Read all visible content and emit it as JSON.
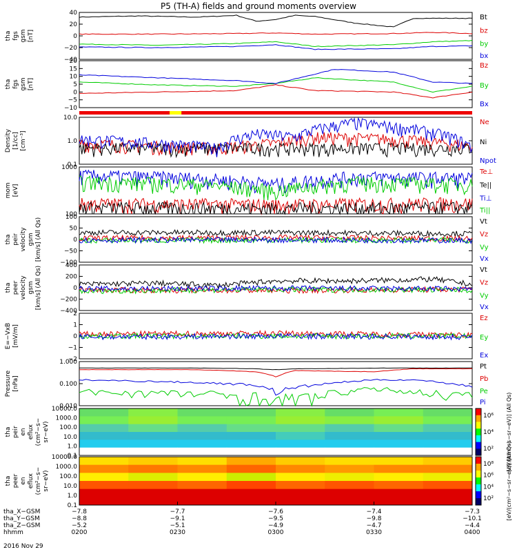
{
  "chart_data": {
    "type": "line",
    "title": "P5 (TH-A) fields and ground moments overview",
    "panels": [
      {
        "ylabel": [
          "tha",
          "fgs",
          "gsm",
          "[nT]"
        ],
        "yticks": [
          "40",
          "20",
          "0",
          "−20",
          "−40"
        ],
        "ylim": [
          -40,
          40
        ],
        "series": [
          {
            "name": "Bt",
            "color": "#000000",
            "x": [
              0,
              0.15,
              0.3,
              0.4,
              0.45,
              0.5,
              0.55,
              0.6,
              0.7,
              0.8,
              0.85,
              0.9,
              1
            ],
            "values": [
              32,
              34,
              32,
              35,
              25,
              28,
              35,
              33,
              22,
              15,
              30,
              30,
              30
            ]
          },
          {
            "name": "bz",
            "color": "#dd0000",
            "x": [
              0,
              0.2,
              0.4,
              0.5,
              0.6,
              0.8,
              0.9,
              1
            ],
            "values": [
              3,
              3,
              4,
              5,
              3,
              4,
              6,
              4
            ]
          },
          {
            "name": "by",
            "color": "#00cc00",
            "x": [
              0,
              0.2,
              0.4,
              0.5,
              0.6,
              0.8,
              0.9,
              1
            ],
            "values": [
              -14,
              -16,
              -13,
              -10,
              -18,
              -15,
              -10,
              -8
            ]
          },
          {
            "name": "bx",
            "color": "#0000dd",
            "x": [
              0,
              0.2,
              0.4,
              0.5,
              0.6,
              0.8,
              0.9,
              1
            ],
            "values": [
              -19,
              -20,
              -18,
              -15,
              -23,
              -22,
              -18,
              -17
            ]
          }
        ]
      },
      {
        "ylabel": [
          "tha",
          "fgs",
          "gsm",
          "[nT]"
        ],
        "yticks": [
          "20",
          "15",
          "10",
          "5",
          "0",
          "−5",
          "−10"
        ],
        "ylim": [
          -13,
          20
        ],
        "series": [
          {
            "name": "Bz",
            "color": "#dd0000",
            "x": [
              0,
              0.2,
              0.4,
              0.5,
              0.6,
              0.8,
              0.9,
              1
            ],
            "values": [
              -3,
              -2,
              -1,
              3,
              -1,
              -2,
              -6,
              -2
            ]
          },
          {
            "name": "By",
            "color": "#00cc00",
            "x": [
              0,
              0.2,
              0.4,
              0.5,
              0.6,
              0.8,
              0.9,
              1
            ],
            "values": [
              5,
              3,
              2,
              4,
              8,
              5,
              -2,
              2
            ]
          },
          {
            "name": "Bx",
            "color": "#0000dd",
            "x": [
              0,
              0.2,
              0.4,
              0.5,
              0.65,
              0.8,
              0.9,
              1
            ],
            "values": [
              10,
              8,
              6,
              4,
              14,
              12,
              5,
              4
            ]
          }
        ]
      },
      {
        "ylabel": [
          "Density",
          "[1/cc]",
          "[cm⁻³]"
        ],
        "yticks": [
          "10.0",
          "1.0",
          "0.1"
        ],
        "scale": "log",
        "ylim": [
          0.1,
          10
        ],
        "series": [
          {
            "name": "Ne",
            "color": "#dd0000",
            "x": [
              0,
              0.2,
              0.35,
              0.5,
              0.6,
              0.8,
              1
            ],
            "values": [
              0.8,
              0.6,
              0.5,
              0.8,
              1.5,
              1.2,
              0.6
            ]
          },
          {
            "name": "Ni",
            "color": "#000000",
            "x": [
              0,
              0.5,
              1
            ],
            "values": [
              0.5,
              0.5,
              0.5
            ]
          },
          {
            "name": "Npot",
            "color": "#0000dd",
            "x": [
              0,
              0.2,
              0.35,
              0.45,
              0.55,
              0.7,
              0.8,
              1
            ],
            "values": [
              1.2,
              0.8,
              0.5,
              2,
              1.5,
              6,
              4,
              0.5
            ]
          }
        ]
      },
      {
        "ylabel": [
          "mom",
          "[eV]"
        ],
        "yticks": [
          "1000",
          "100"
        ],
        "scale": "log",
        "ylim": [
          100,
          5000
        ],
        "series": [
          {
            "name": "Te⊥",
            "color": "#dd0000",
            "x": [
              0,
              0.5,
              1
            ],
            "values": [
              240,
              220,
              250
            ]
          },
          {
            "name": "Te||",
            "color": "#000000",
            "x": [
              0,
              0.5,
              1
            ],
            "values": [
              170,
              160,
              170
            ]
          },
          {
            "name": "Ti⊥",
            "color": "#0000dd",
            "x": [
              0,
              0.3,
              0.5,
              0.7,
              1
            ],
            "values": [
              2500,
              2000,
              1200,
              2200,
              2000
            ]
          },
          {
            "name": "Ti||",
            "color": "#00cc00",
            "x": [
              0,
              0.3,
              0.5,
              0.7,
              1
            ],
            "values": [
              1500,
              1200,
              700,
              1400,
              1200
            ]
          }
        ]
      },
      {
        "ylabel": [
          "tha",
          "peir",
          "velocity",
          "gsm",
          "[km/s] (All Qs)"
        ],
        "yticks": [
          "100",
          "50",
          "0",
          "−50",
          "−100"
        ],
        "ylim": [
          -100,
          100
        ],
        "series": [
          {
            "name": "Vt",
            "color": "#000000",
            "x": [
              0,
              0.5,
              1
            ],
            "values": [
              30,
              30,
              25
            ]
          },
          {
            "name": "Vz",
            "color": "#dd0000",
            "x": [
              0,
              0.5,
              1
            ],
            "values": [
              5,
              8,
              3
            ]
          },
          {
            "name": "Vy",
            "color": "#00cc00",
            "x": [
              0,
              0.5,
              1
            ],
            "values": [
              -5,
              -3,
              -4
            ]
          },
          {
            "name": "Vx",
            "color": "#0000dd",
            "x": [
              0,
              0.5,
              1
            ],
            "values": [
              -3,
              -2,
              -5
            ]
          }
        ]
      },
      {
        "ylabel": [
          "tha",
          "peer",
          "velocity",
          "gsm",
          "[km/s] (All Qs)"
        ],
        "yticks": [
          "400",
          "200",
          "0",
          "−200",
          "−400"
        ],
        "ylim": [
          -400,
          400
        ],
        "series": [
          {
            "name": "Vt",
            "color": "#000000",
            "x": [
              0,
              0.2,
              0.35,
              0.5,
              0.7,
              0.9,
              1
            ],
            "values": [
              60,
              80,
              40,
              120,
              120,
              150,
              60
            ]
          },
          {
            "name": "Vz",
            "color": "#dd0000",
            "x": [
              0,
              0.5,
              1
            ],
            "values": [
              -40,
              -50,
              -30
            ]
          },
          {
            "name": "Vy",
            "color": "#00cc00",
            "x": [
              0,
              0.5,
              1
            ],
            "values": [
              -60,
              -30,
              -40
            ]
          },
          {
            "name": "Vx",
            "color": "#0000dd",
            "x": [
              0,
              0.5,
              1
            ],
            "values": [
              -20,
              -10,
              -20
            ]
          }
        ]
      },
      {
        "ylabel": [
          "E=−VxB",
          "[mV/m]"
        ],
        "yticks": [
          "2",
          "1",
          "0",
          "−1",
          "−2"
        ],
        "ylim": [
          -2.5,
          2.5
        ],
        "series": [
          {
            "name": "Ez",
            "color": "#dd0000",
            "x": [
              0,
              0.5,
              1
            ],
            "values": [
              0.2,
              0.3,
              0.1
            ]
          },
          {
            "name": "Ey",
            "color": "#00cc00",
            "x": [
              0,
              0.5,
              1
            ],
            "values": [
              0,
              0,
              0
            ]
          },
          {
            "name": "Ex",
            "color": "#0000dd",
            "x": [
              0,
              0.5,
              1
            ],
            "values": [
              -0.1,
              0,
              -0.1
            ]
          }
        ]
      },
      {
        "ylabel": [
          "Pressure",
          "[nPa]"
        ],
        "yticks": [
          "1.000",
          "0.100",
          "0.010"
        ],
        "scale": "log",
        "ylim": [
          0.003,
          1.2
        ],
        "series": [
          {
            "name": "Pt",
            "color": "#000000",
            "x": [
              0,
              0.3,
              0.45,
              0.5,
              0.55,
              0.8,
              1
            ],
            "values": [
              0.5,
              0.5,
              0.45,
              0.4,
              0.45,
              0.5,
              0.5
            ]
          },
          {
            "name": "Pb",
            "color": "#dd0000",
            "x": [
              0,
              0.3,
              0.45,
              0.5,
              0.55,
              0.75,
              0.85,
              1
            ],
            "values": [
              0.4,
              0.4,
              0.3,
              0.15,
              0.35,
              0.3,
              0.45,
              0.45
            ]
          },
          {
            "name": "Pe",
            "color": "#00cc00",
            "x": [
              0,
              0.3,
              0.45,
              0.5,
              0.6,
              0.75,
              0.85,
              1
            ],
            "values": [
              0.02,
              0.015,
              0.01,
              0.005,
              0.01,
              0.03,
              0.02,
              0.01
            ]
          },
          {
            "name": "Pi",
            "color": "#0000dd",
            "x": [
              0,
              0.3,
              0.45,
              0.5,
              0.6,
              0.75,
              0.85,
              1
            ],
            "values": [
              0.1,
              0.07,
              0.05,
              0.02,
              0.05,
              0.1,
              0.1,
              0.04
            ]
          }
        ]
      },
      {
        "type": "heatmap",
        "ylabel": [
          "tha",
          "peir",
          "en",
          "eflux",
          "(cm²−s−",
          "sr−eV)"
        ],
        "yticks": [
          "10000.0",
          "1000.0",
          "100.0",
          "10.0",
          "1.0",
          "0.1"
        ],
        "colorbar": {
          "label": "[eV/(cm²−s−sr−eV)] (All Qs)",
          "ticks": [
            "10⁶",
            "10⁴",
            "10²"
          ]
        },
        "rows": [
          [
            "#66dd66",
            "#88ee44",
            "#66dd66",
            "#66dd66",
            "#88ee44",
            "#66dd66",
            "#77ee55",
            "#66dd66"
          ],
          [
            "#77ee55",
            "#99ee33",
            "#77ee55",
            "#77ee55",
            "#99ee33",
            "#88ee44",
            "#99ee33",
            "#77ee55"
          ],
          [
            "#55ccaa",
            "#66dd88",
            "#55ccaa",
            "#66dd88",
            "#66dd88",
            "#55ccaa",
            "#66dd88",
            "#55ccaa"
          ],
          [
            "#33bbcc",
            "#33bbcc",
            "#33bbcc",
            "#33bbcc",
            "#44ccbb",
            "#33bbcc",
            "#33bbcc",
            "#33bbcc"
          ],
          [
            "#22ccee",
            "#22ccee",
            "#22ccee",
            "#22ccee",
            "#22ccee",
            "#22ccee",
            "#22ccee",
            "#22ccee"
          ],
          [
            "#ffffff",
            "#ffffff",
            "#ffffff",
            "#ffffff",
            "#ffffff",
            "#ffffff",
            "#ffffff",
            "#ffffff"
          ]
        ]
      },
      {
        "type": "heatmap",
        "ylabel": [
          "tha",
          "peer",
          "en",
          "eflux",
          "(cm²−s−",
          "sr−eV)"
        ],
        "yticks": [
          "10000.0",
          "1000.0",
          "100.0",
          "10.0",
          "1.0",
          "0.1"
        ],
        "colorbar": {
          "label": "[eV/(cm²−s−sr−eV)] (All Qs)",
          "ticks": [
            "10⁸",
            "10⁶",
            "10⁴",
            "10²"
          ]
        },
        "rows": [
          [
            "#ffdd00",
            "#ffcc00",
            "#ffdd00",
            "#ffaa00",
            "#ffcc00",
            "#ffdd00",
            "#ffdd00",
            "#ffcc00"
          ],
          [
            "#ff8800",
            "#ff7700",
            "#ff8800",
            "#ff6600",
            "#ff8800",
            "#ff9900",
            "#ff8800",
            "#ff8800"
          ],
          [
            "#ffee00",
            "#ddee00",
            "#ffee00",
            "#ccee00",
            "#ffee00",
            "#eeee00",
            "#ffee00",
            "#eeee00"
          ],
          [
            "#ff5500",
            "#ff5500",
            "#ff6600",
            "#ff4400",
            "#ff6600",
            "#ff5500",
            "#ff6600",
            "#ff5500"
          ],
          [
            "#dd0000",
            "#dd0000",
            "#dd0000",
            "#dd0000",
            "#dd0000",
            "#dd0000",
            "#dd0000",
            "#dd0000"
          ],
          [
            "#dd0000",
            "#dd0000",
            "#dd0000",
            "#dd0000",
            "#dd0000",
            "#dd0000",
            "#dd0000",
            "#dd0000"
          ]
        ]
      }
    ],
    "xaxis_rows": [
      {
        "label": "tha_X−GSM",
        "ticks": [
          "−7.8",
          "−7.7",
          "−7.6",
          "−7.4",
          "−7.3"
        ]
      },
      {
        "label": "tha_Y−GSM",
        "ticks": [
          "−8.8",
          "−9.1",
          "−9.5",
          "−9.8",
          "−10.1"
        ]
      },
      {
        "label": "tha_Z−GSM",
        "ticks": [
          "−5.2",
          "−5.1",
          "−4.9",
          "−4.7",
          "−4.4"
        ]
      },
      {
        "label": "hhmm",
        "ticks": [
          "0200",
          "0230",
          "0300",
          "0330",
          "0400"
        ]
      }
    ],
    "date": "2016 Nov 29",
    "colors": {
      "red_bar": "#ee0000",
      "yellow_bar": "#ffff00"
    }
  }
}
